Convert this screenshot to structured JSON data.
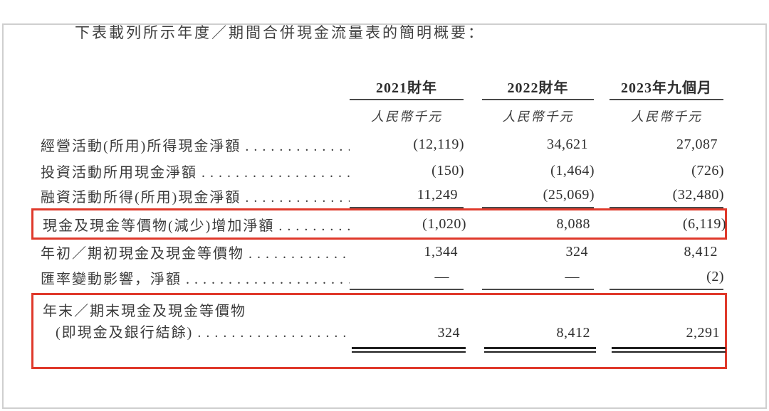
{
  "title": "下表載列所示年度／期間合併現金流量表的簡明概要：",
  "leader_dots": ". . . . . . . . . . . . . . . . . . . . . . . . . . . . . . . . . . . . . . . . . . . . . . . . . . . .",
  "table": {
    "columns": [
      {
        "year": "2021財年",
        "unit": "人民幣千元"
      },
      {
        "year": "2022財年",
        "unit": "人民幣千元"
      },
      {
        "year": "2023年九個月",
        "unit": "人民幣千元"
      }
    ],
    "rows": [
      {
        "label": "經營活動(所用)所得現金淨額",
        "values": [
          "(12,119)",
          "34,621",
          "27,087"
        ]
      },
      {
        "label": "投資活動所用現金淨額",
        "values": [
          "(150)",
          "(1,464)",
          "(726)"
        ]
      },
      {
        "label": "融資活動所得(所用)現金淨額",
        "values": [
          "11,249",
          "(25,069)",
          "(32,480)"
        ]
      },
      {
        "label": "現金及現金等價物(減少)增加淨額",
        "values": [
          "(1,020)",
          "8,088",
          "(6,119)"
        ],
        "highlighted": true
      },
      {
        "label": "年初／期初現金及現金等價物",
        "values": [
          "1,344",
          "324",
          "8,412"
        ]
      },
      {
        "label": "匯率變動影響，淨額",
        "values": [
          "—",
          "—",
          "(2)"
        ]
      },
      {
        "label_line1": "年末／期末現金及現金等價物",
        "label_line2": "(即現金及銀行結餘)",
        "values": [
          "324",
          "8,412",
          "2,291"
        ],
        "highlighted": true
      }
    ]
  },
  "colors": {
    "highlight_border": "#df392b",
    "text": "#3a3a3a",
    "rule": "#4a4a4a"
  }
}
